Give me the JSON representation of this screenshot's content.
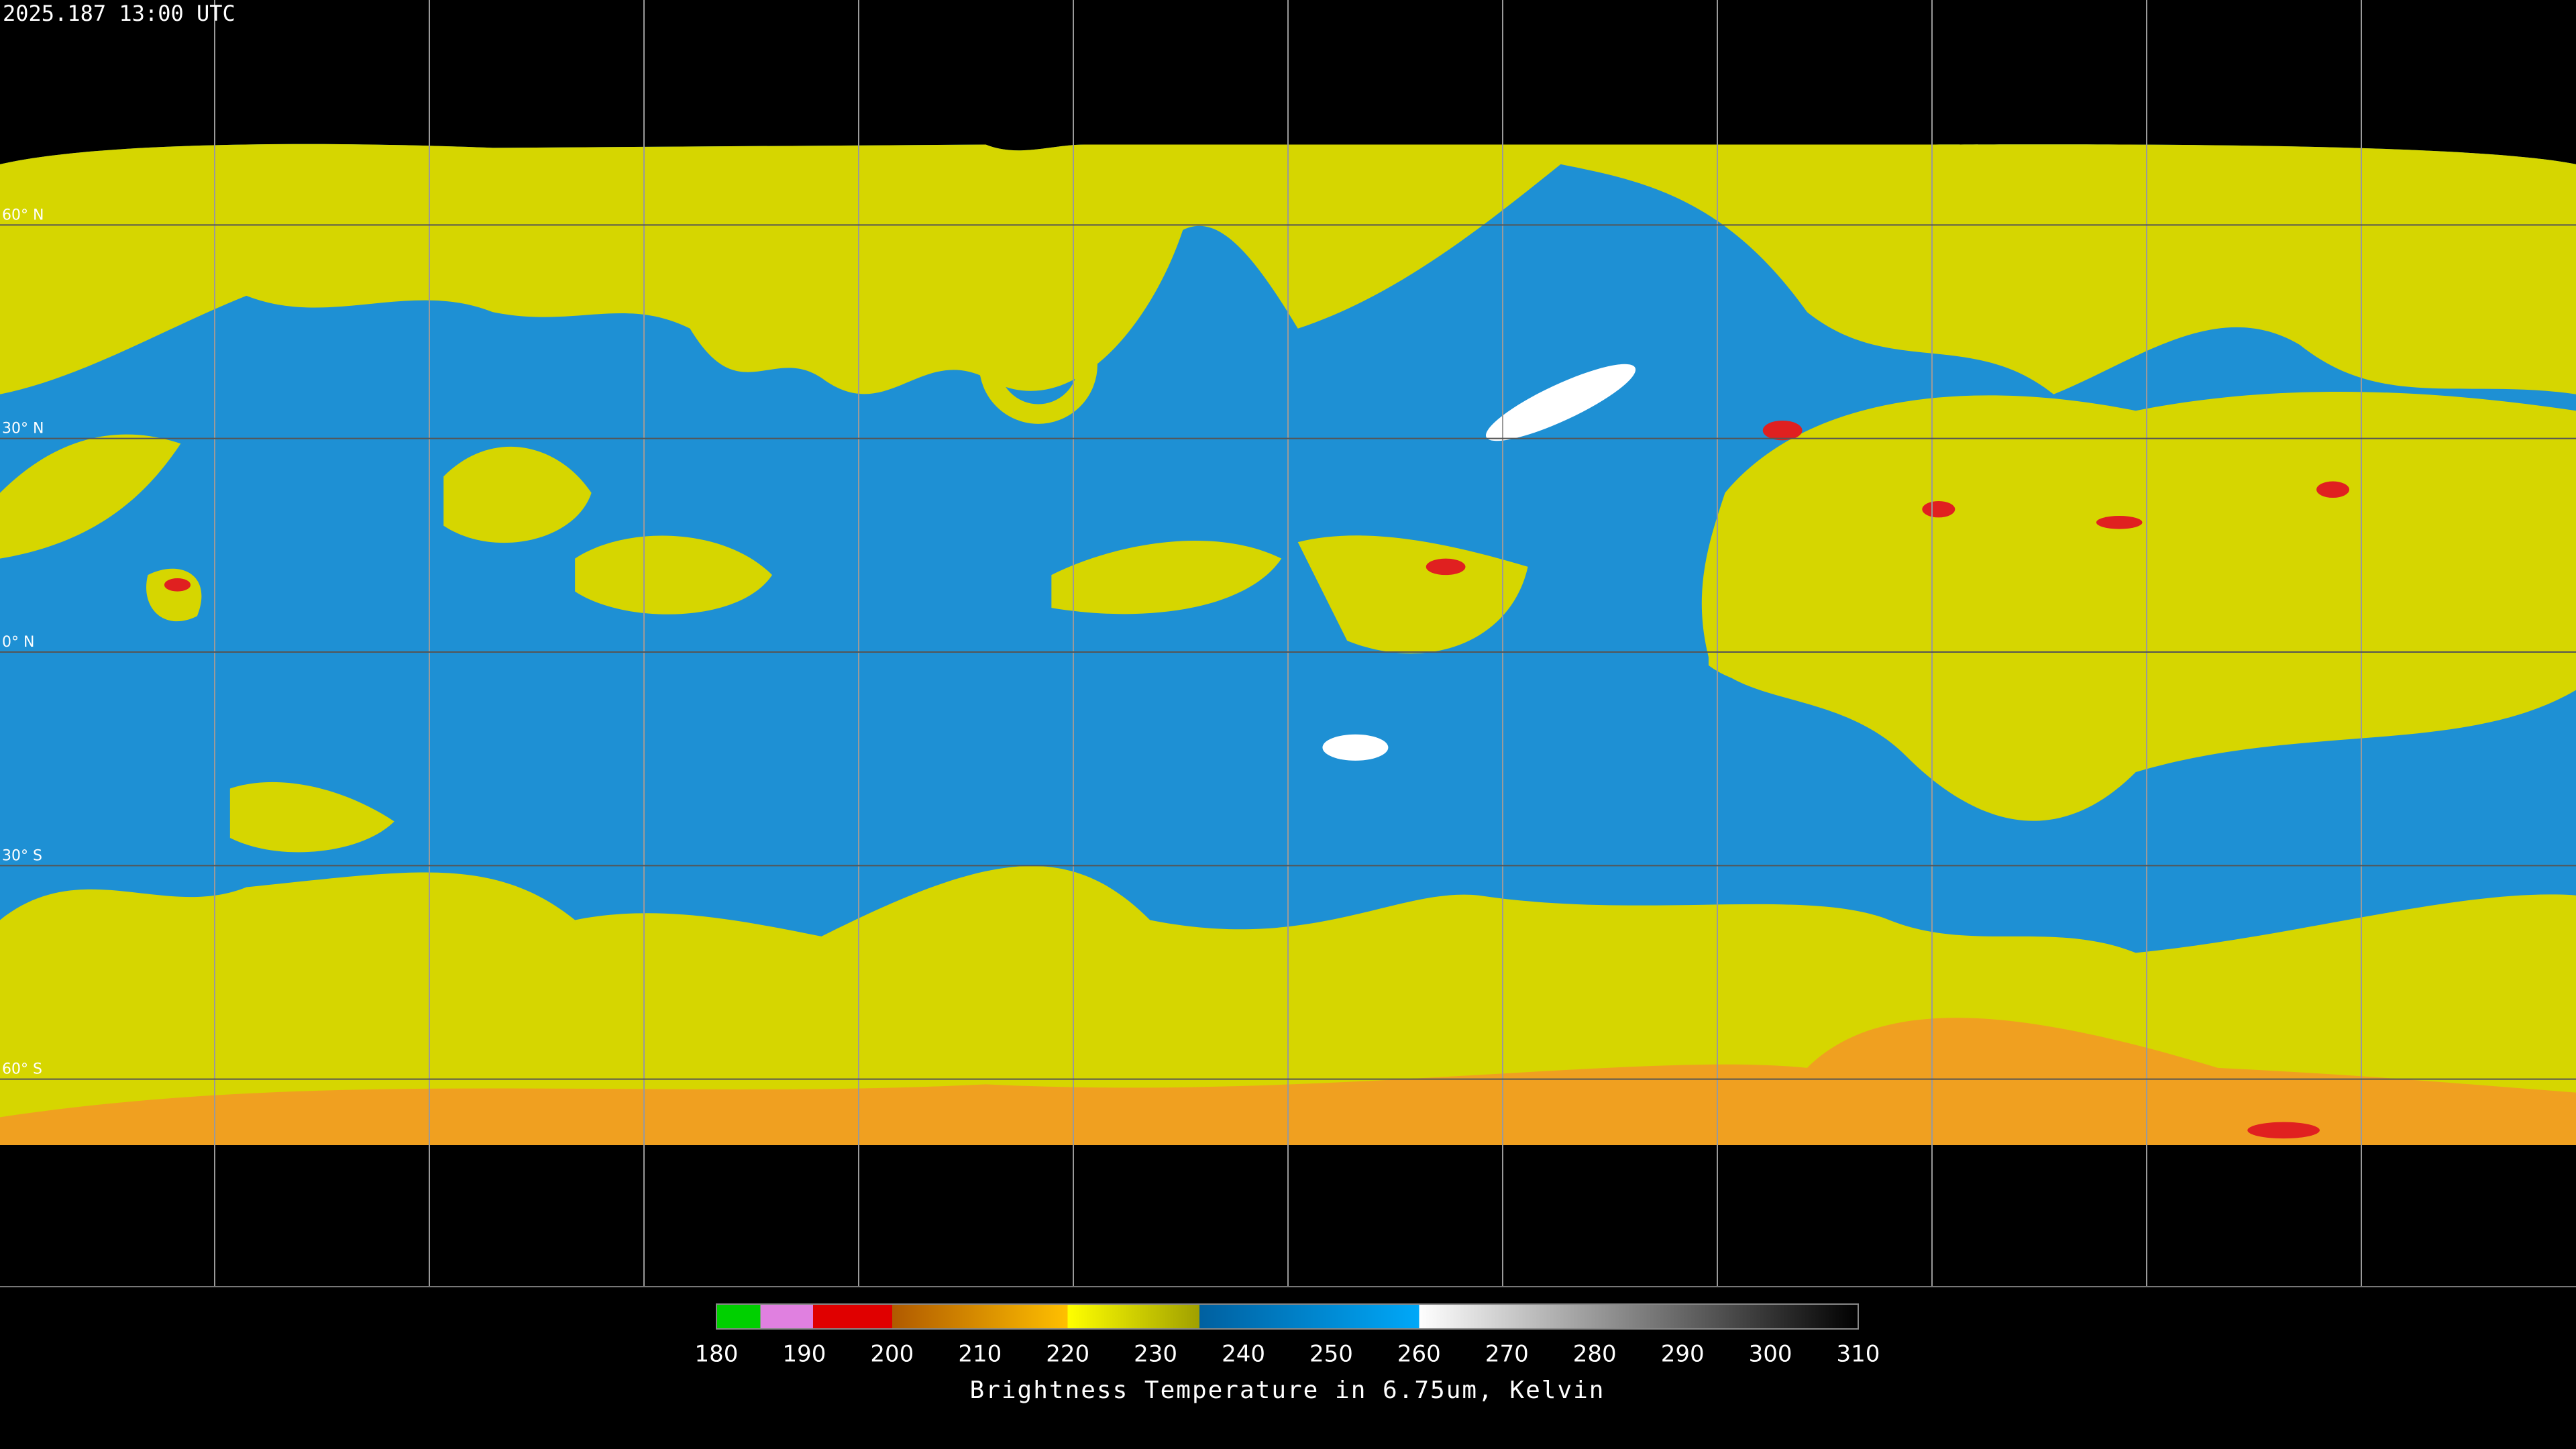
{
  "header": {
    "title": "2025.187 13:00 UTC"
  },
  "map": {
    "xlim": [
      -180,
      180
    ],
    "ylim": [
      90,
      -90
    ],
    "lat_ticks": [
      {
        "value": 60,
        "label": "60° N"
      },
      {
        "value": 30,
        "label": "30° N"
      },
      {
        "value": 0,
        "label": "0° N"
      },
      {
        "value": -30,
        "label": "30° S"
      },
      {
        "value": -60,
        "label": "60° S"
      }
    ],
    "lon_lines": [
      -150,
      -120,
      -90,
      -60,
      -30,
      0,
      30,
      60,
      90,
      120,
      150
    ]
  },
  "colorbar": {
    "lim": [
      180,
      310
    ],
    "ticks": [
      180,
      190,
      200,
      210,
      220,
      230,
      240,
      250,
      260,
      270,
      280,
      290,
      300,
      310
    ],
    "label": "Brightness Temperature in 6.75um, Kelvin",
    "stops": [
      {
        "value": 180,
        "color": "#00d000"
      },
      {
        "value": 185,
        "color": "#00d000"
      },
      {
        "value": 185,
        "color": "#e080e0"
      },
      {
        "value": 191,
        "color": "#e080e0"
      },
      {
        "value": 191,
        "color": "#e00000"
      },
      {
        "value": 200,
        "color": "#e00000"
      },
      {
        "value": 200,
        "color": "#b05a00"
      },
      {
        "value": 220,
        "color": "#ffc000"
      },
      {
        "value": 220,
        "color": "#ffff00"
      },
      {
        "value": 235,
        "color": "#a0a000"
      },
      {
        "value": 235,
        "color": "#0060a0"
      },
      {
        "value": 260,
        "color": "#00a8f8"
      },
      {
        "value": 260,
        "color": "#ffffff"
      },
      {
        "value": 310,
        "color": "#000000"
      }
    ]
  }
}
